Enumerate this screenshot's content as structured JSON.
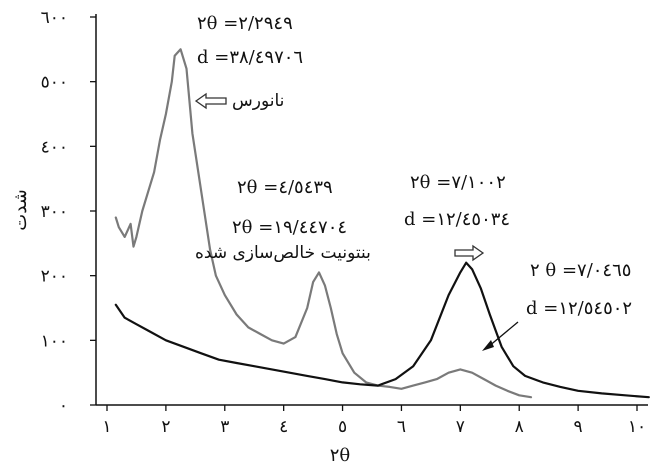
{
  "chart_data": {
    "type": "line",
    "xlabel": "۲θ",
    "ylabel": "شدت",
    "xlim": [
      1,
      10.2
    ],
    "ylim": [
      0,
      600
    ],
    "x_ticks": [
      {
        "value": 1,
        "label": "۱"
      },
      {
        "value": 2,
        "label": "۲"
      },
      {
        "value": 3,
        "label": "۳"
      },
      {
        "value": 4,
        "label": "٤"
      },
      {
        "value": 5,
        "label": "٥"
      },
      {
        "value": 6,
        "label": "٦"
      },
      {
        "value": 7,
        "label": "٧"
      },
      {
        "value": 8,
        "label": "٨"
      },
      {
        "value": 9,
        "label": "٩"
      },
      {
        "value": 10,
        "label": "١٠"
      }
    ],
    "y_ticks": [
      {
        "value": 0,
        "label": "٠"
      },
      {
        "value": 100,
        "label": "١٠٠"
      },
      {
        "value": 200,
        "label": "٢٠٠"
      },
      {
        "value": 300,
        "label": "٣٠٠"
      },
      {
        "value": 400,
        "label": "٤٠٠"
      },
      {
        "value": 500,
        "label": "٥٠٠"
      },
      {
        "value": 600,
        "label": "٦٠٠"
      }
    ],
    "grid": false,
    "series": [
      {
        "name": "نانورس",
        "color": "#7a7a7a",
        "points": [
          [
            1.15,
            290
          ],
          [
            1.2,
            275
          ],
          [
            1.3,
            260
          ],
          [
            1.4,
            280
          ],
          [
            1.45,
            245
          ],
          [
            1.5,
            260
          ],
          [
            1.6,
            300
          ],
          [
            1.7,
            330
          ],
          [
            1.8,
            360
          ],
          [
            1.9,
            410
          ],
          [
            2.0,
            450
          ],
          [
            2.1,
            500
          ],
          [
            2.15,
            540
          ],
          [
            2.25,
            550
          ],
          [
            2.35,
            520
          ],
          [
            2.45,
            420
          ],
          [
            2.55,
            360
          ],
          [
            2.65,
            300
          ],
          [
            2.75,
            240
          ],
          [
            2.85,
            200
          ],
          [
            3.0,
            170
          ],
          [
            3.2,
            140
          ],
          [
            3.4,
            120
          ],
          [
            3.6,
            110
          ],
          [
            3.8,
            100
          ],
          [
            4.0,
            95
          ],
          [
            4.2,
            105
          ],
          [
            4.4,
            150
          ],
          [
            4.5,
            190
          ],
          [
            4.6,
            205
          ],
          [
            4.7,
            185
          ],
          [
            4.8,
            150
          ],
          [
            4.9,
            110
          ],
          [
            5.0,
            80
          ],
          [
            5.2,
            50
          ],
          [
            5.4,
            35
          ],
          [
            5.6,
            30
          ],
          [
            5.8,
            28
          ],
          [
            6.0,
            25
          ],
          [
            6.2,
            30
          ],
          [
            6.4,
            35
          ],
          [
            6.6,
            40
          ],
          [
            6.8,
            50
          ],
          [
            7.0,
            55
          ],
          [
            7.2,
            50
          ],
          [
            7.4,
            40
          ],
          [
            7.6,
            30
          ],
          [
            7.8,
            22
          ],
          [
            8.0,
            15
          ],
          [
            8.2,
            12
          ]
        ]
      },
      {
        "name": "بنتونیت خالص‌سازی شده",
        "color": "#111111",
        "points": [
          [
            1.15,
            155
          ],
          [
            1.3,
            135
          ],
          [
            1.5,
            125
          ],
          [
            1.7,
            115
          ],
          [
            2.0,
            100
          ],
          [
            2.3,
            90
          ],
          [
            2.6,
            80
          ],
          [
            2.9,
            70
          ],
          [
            3.2,
            65
          ],
          [
            3.5,
            60
          ],
          [
            3.8,
            55
          ],
          [
            4.1,
            50
          ],
          [
            4.4,
            45
          ],
          [
            4.7,
            40
          ],
          [
            5.0,
            35
          ],
          [
            5.3,
            32
          ],
          [
            5.6,
            30
          ],
          [
            5.9,
            40
          ],
          [
            6.2,
            60
          ],
          [
            6.5,
            100
          ],
          [
            6.8,
            170
          ],
          [
            7.0,
            205
          ],
          [
            7.1,
            220
          ],
          [
            7.2,
            210
          ],
          [
            7.35,
            180
          ],
          [
            7.5,
            140
          ],
          [
            7.7,
            90
          ],
          [
            7.9,
            60
          ],
          [
            8.1,
            45
          ],
          [
            8.4,
            35
          ],
          [
            8.7,
            28
          ],
          [
            9.0,
            22
          ],
          [
            9.4,
            18
          ],
          [
            9.8,
            15
          ],
          [
            10.2,
            12
          ]
        ]
      }
    ],
    "annotations": [
      {
        "id": "ann-peak1-2theta",
        "text": "۲θ =۲/۲۹٤۹",
        "anchor_x": 2.9,
        "anchor_y": 584
      },
      {
        "id": "ann-peak1-d",
        "text": "d =۳۸/٤۹٧٠٦",
        "anchor_x": 2.7,
        "anchor_y": 543
      },
      {
        "id": "ann-nano-label",
        "text": "نانورس",
        "anchor_x": 3.4,
        "anchor_y": 462
      },
      {
        "id": "ann-peak2-2theta",
        "text": "۲θ =٤/٥٤۳۹",
        "anchor_x": 4.5,
        "anchor_y": 320
      },
      {
        "id": "ann-peak2-d",
        "text": "۲θ =١٩/٤٤٧٠٤",
        "anchor_x": 4.3,
        "anchor_y": 263
      },
      {
        "id": "ann-bento-label",
        "text": "بنتونیت خالص‌سازی شده",
        "anchor_x": 4.5,
        "anchor_y": 215
      },
      {
        "id": "ann-peak3-2theta",
        "text": "۲θ =٧/١٠٠۲",
        "anchor_x": 7.2,
        "anchor_y": 335
      },
      {
        "id": "ann-peak3-d",
        "text": "d =١۲/٤٥٠۳٤",
        "anchor_x": 7.2,
        "anchor_y": 280
      },
      {
        "id": "ann-peak4-2theta",
        "text": "۲ θ =٧/٠٤٦٥",
        "anchor_x": 9.3,
        "anchor_y": 197
      },
      {
        "id": "ann-peak4-d",
        "text": "d =١۲/٥٤٥٠۲",
        "anchor_x": 9.3,
        "anchor_y": 140
      }
    ]
  }
}
